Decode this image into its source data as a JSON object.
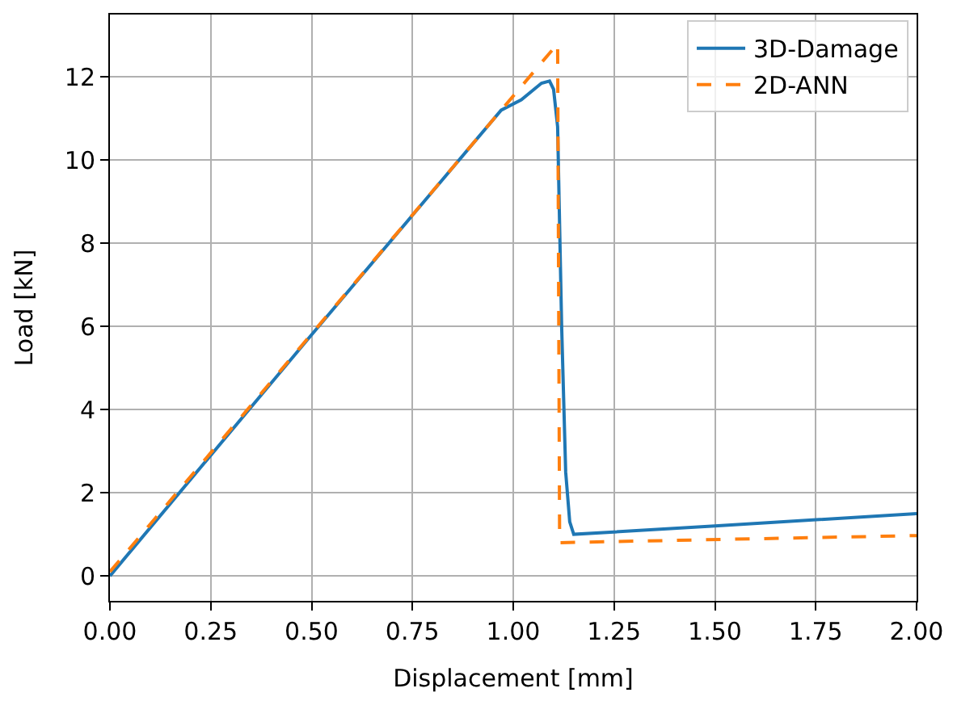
{
  "chart_data": {
    "type": "line",
    "xlabel": "Displacement [mm]",
    "ylabel": "Load [kN]",
    "xlim": [
      0,
      2
    ],
    "ylim": [
      -0.6,
      13.5
    ],
    "xticks": [
      {
        "value": 0,
        "label": "0.00"
      },
      {
        "value": 0.25,
        "label": "0.25"
      },
      {
        "value": 0.5,
        "label": "0.50"
      },
      {
        "value": 0.75,
        "label": "0.75"
      },
      {
        "value": 1,
        "label": "1.00"
      },
      {
        "value": 1.25,
        "label": "1.25"
      },
      {
        "value": 1.5,
        "label": "1.50"
      },
      {
        "value": 1.75,
        "label": "1.75"
      },
      {
        "value": 2,
        "label": "2.00"
      }
    ],
    "yticks": [
      0,
      2,
      4,
      6,
      8,
      10,
      12
    ],
    "grid": true,
    "legend": "top right",
    "series": [
      {
        "name": "3D-Damage",
        "color": "#1f77b4",
        "line_style": "solid",
        "x": [
          0,
          0.5,
          0.97,
          1.02,
          1.07,
          1.09,
          1.1,
          1.11,
          1.12,
          1.13,
          1.14,
          1.15,
          1.5,
          2
        ],
        "values": [
          0,
          5.8,
          11.2,
          11.45,
          11.85,
          11.9,
          11.7,
          10.8,
          6,
          2.5,
          1.3,
          1.0,
          1.2,
          1.5
        ]
      },
      {
        "name": "2D-ANN",
        "color": "#ff7f0e",
        "line_style": "dashed",
        "x": [
          0,
          1.11,
          1.115,
          2
        ],
        "values": [
          0.1,
          12.8,
          0.8,
          0.97
        ]
      }
    ]
  }
}
